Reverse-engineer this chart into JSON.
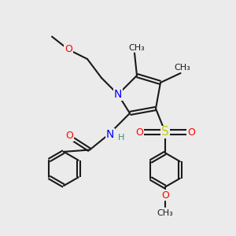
{
  "bg_color": "#ebebeb",
  "bond_color": "#1a1a1a",
  "N_color": "#0000ff",
  "O_color": "#ff0000",
  "S_color": "#cccc00",
  "H_color": "#3a8a7a",
  "line_width": 1.5,
  "figsize": [
    3.0,
    3.0
  ],
  "dpi": 100,
  "xlim": [
    0,
    10
  ],
  "ylim": [
    0,
    10
  ]
}
